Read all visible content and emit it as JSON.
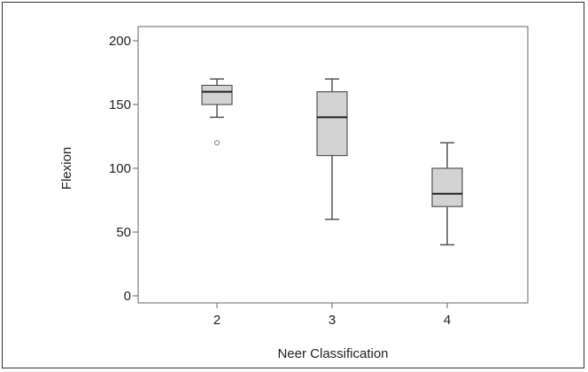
{
  "chart_data": {
    "type": "boxplot",
    "xlabel": "Neer Classification",
    "ylabel": "Flexion",
    "ylim": [
      0,
      200
    ],
    "y_ticks": [
      0,
      50,
      100,
      150,
      200
    ],
    "categories": [
      "2",
      "3",
      "4"
    ],
    "boxes": [
      {
        "category": "2",
        "whisker_low": 140,
        "q1": 150,
        "median": 160,
        "q3": 165,
        "whisker_high": 170,
        "outliers": [
          120
        ]
      },
      {
        "category": "3",
        "whisker_low": 60,
        "q1": 110,
        "median": 140,
        "q3": 160,
        "whisker_high": 170,
        "outliers": []
      },
      {
        "category": "4",
        "whisker_low": 40,
        "q1": 70,
        "median": 80,
        "q3": 100,
        "whisker_high": 120,
        "outliers": []
      }
    ],
    "grid": false,
    "colors": {
      "box_fill": "#d3d3d3",
      "box_stroke": "#555555",
      "median": "#222222"
    }
  }
}
